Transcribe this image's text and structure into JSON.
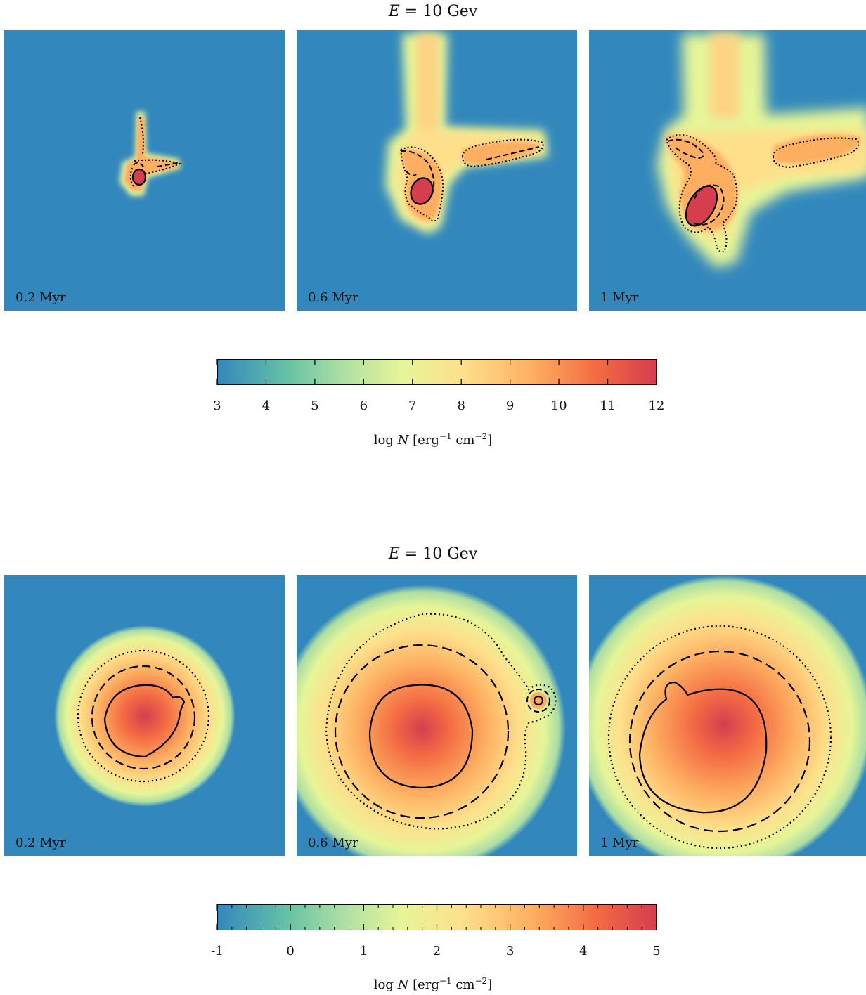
{
  "figures": [
    {
      "title_var": "E",
      "title_rest": " = 10 Gev",
      "panels": [
        {
          "label": "0.2 Myr"
        },
        {
          "label": "0.6 Myr"
        },
        {
          "label": "1 Myr"
        }
      ],
      "colorbar": {
        "ticks": [
          "3",
          "4",
          "5",
          "6",
          "7",
          "8",
          "9",
          "10",
          "11",
          "12"
        ],
        "range": [
          3,
          12
        ],
        "label_main": "log ",
        "label_var": "N",
        "label_unit1": " [erg",
        "label_sup1": "−1",
        "label_unit2": " cm",
        "label_sup2": "−2",
        "label_end": "]"
      }
    },
    {
      "title_var": "E",
      "title_rest": " = 10 Gev",
      "panels": [
        {
          "label": "0.2 Myr"
        },
        {
          "label": "0.6 Myr"
        },
        {
          "label": "1 Myr"
        }
      ],
      "colorbar": {
        "ticks": [
          "-1",
          "0",
          "1",
          "2",
          "3",
          "4",
          "5"
        ],
        "range": [
          -1,
          5
        ],
        "label_main": "log ",
        "label_var": "N",
        "label_unit1": " [erg",
        "label_sup1": "−1",
        "label_unit2": " cm",
        "label_sup2": "−2",
        "label_end": "]"
      }
    }
  ],
  "chart_data": {
    "type": "heatmap",
    "colormap": [
      "#3288bd",
      "#66c2a5",
      "#abdda4",
      "#e6f598",
      "#fee08b",
      "#fdae61",
      "#f46d43",
      "#d53e4f"
    ],
    "background_color": "#3288bd",
    "contour_styles": [
      "dotted",
      "dashed",
      "solid"
    ]
  }
}
